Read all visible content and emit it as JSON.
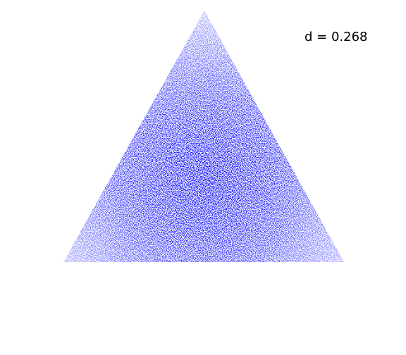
{
  "annotation": "d = 0.268"
}
